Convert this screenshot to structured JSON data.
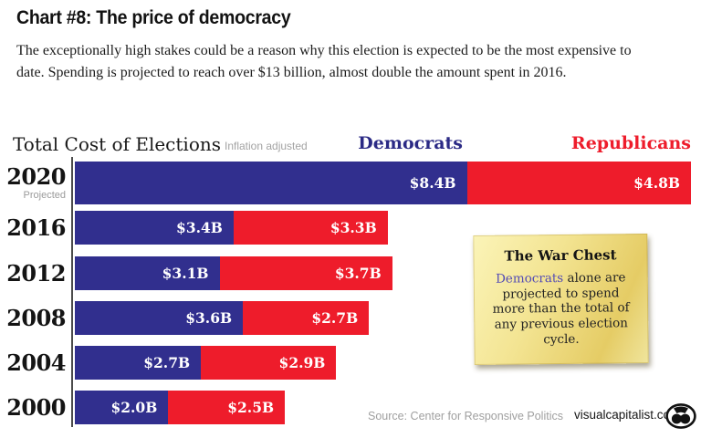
{
  "page": {
    "title": "Chart #8: The price of democracy",
    "description": "The exceptionally high stakes could be a reason why this election is expected to be the most expensive to date. Spending is projected to reach over $13 billion, almost double the amount spent in 2016."
  },
  "chart_data": {
    "type": "bar",
    "orientation": "horizontal",
    "stacked": true,
    "title": "Total Cost of Elections",
    "subtitle": "Inflation adjusted",
    "categories": [
      "2020",
      "2016",
      "2012",
      "2008",
      "2004",
      "2000"
    ],
    "category_notes": {
      "2020": "Projected"
    },
    "series": [
      {
        "name": "Democrats",
        "color": "#312f8e",
        "values": [
          8.4,
          3.4,
          3.1,
          3.6,
          2.7,
          2.0
        ],
        "labels": [
          "$8.4B",
          "$3.4B",
          "$3.1B",
          "$3.6B",
          "$2.7B",
          "$2.0B"
        ]
      },
      {
        "name": "Republicans",
        "color": "#ee1c2b",
        "values": [
          4.8,
          3.3,
          3.7,
          2.7,
          2.9,
          2.5
        ],
        "labels": [
          "$4.8B",
          "$3.3B",
          "$3.7B",
          "$2.7B",
          "$2.9B",
          "$2.5B"
        ]
      }
    ],
    "legend": [
      {
        "label": "Democrats",
        "color": "#2b2a85"
      },
      {
        "label": "Republicans",
        "color": "#ee1c2b"
      }
    ],
    "legend_position": "top-right",
    "unit": "USD billions",
    "xlim": [
      0,
      13.2
    ],
    "grid": false
  },
  "note": {
    "title": "The War Chest",
    "highlight": "Democrats",
    "rest": " alone are projected to spend more than the total of any previous election cycle.",
    "highlight_color": "#544cb5",
    "paper_color": "#f1e18c"
  },
  "footer": {
    "source": "Source: Center for Responsive Politics",
    "site": "visualcapitalist.com"
  },
  "icons": {
    "visualcapitalist_logo": "binoculars-face-in-ellipse"
  }
}
